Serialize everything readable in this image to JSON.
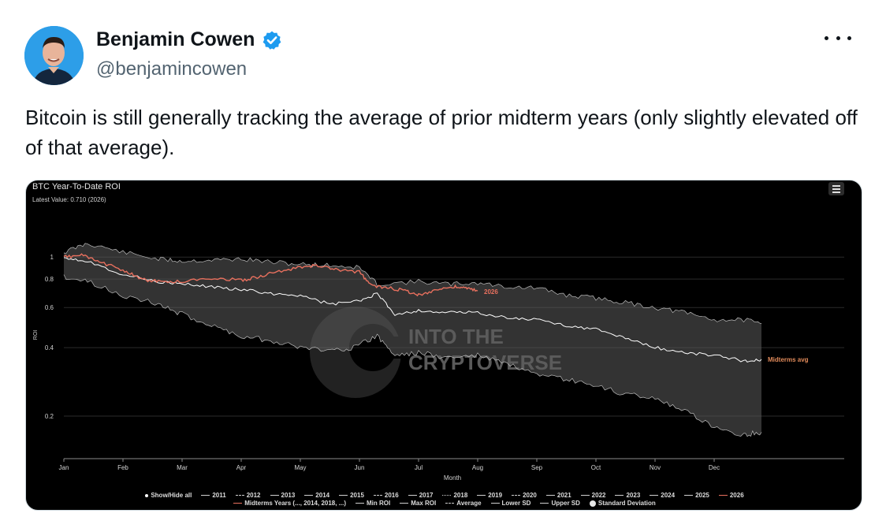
{
  "tweet": {
    "display_name": "Benjamin Cowen",
    "handle": "@benjamincowen",
    "text": "Bitcoin is still generally tracking the average of prior midterm years (only slightly elevated off of that average).",
    "icons": [
      "avatar",
      "verified-badge-icon",
      "more-options-icon"
    ],
    "colors": {
      "verified": "#1d9bf0",
      "name": "#0f1419",
      "handle": "#536471"
    }
  },
  "chart_data": {
    "type": "line",
    "title": "BTC Year-To-Date ROI",
    "subtitle": "Latest Value: 0.710 (2026)",
    "xlabel": "Month",
    "ylabel": "ROI",
    "y_scale": "log",
    "ylim": [
      0.13,
      1.4
    ],
    "y_ticks": [
      1,
      0.8,
      0.6,
      0.4,
      0.2
    ],
    "y_tick_labels": [
      "1",
      "0.8",
      "0.6",
      "0.4",
      "0.2"
    ],
    "x_ticks": [
      "Jan",
      "Feb",
      "Mar",
      "Apr",
      "May",
      "Jun",
      "Jul",
      "Aug",
      "Sep",
      "Oct",
      "Nov",
      "Dec"
    ],
    "watermark": [
      "INTO THE",
      "CRYPTOVERSE"
    ],
    "series_labels": {
      "midterms_avg": "Midterms avg",
      "current": "2026"
    },
    "series": [
      {
        "name": "Max ROI",
        "color": "#bdbdbd",
        "x": [
          0,
          0.4,
          1,
          1.6,
          2,
          2.5,
          3,
          3.5,
          4,
          4.5,
          5,
          5.3,
          6,
          6.5,
          7,
          7.5,
          8,
          8.5,
          9,
          9.5,
          10,
          10.5,
          11,
          11.5,
          11.8
        ],
        "values": [
          1.05,
          1.15,
          1.05,
          0.98,
          0.96,
          0.97,
          0.98,
          0.95,
          0.93,
          0.92,
          0.9,
          0.76,
          0.78,
          0.76,
          0.77,
          0.74,
          0.73,
          0.68,
          0.66,
          0.63,
          0.6,
          0.57,
          0.53,
          0.53,
          0.51
        ]
      },
      {
        "name": "Min ROI",
        "color": "#bdbdbd",
        "x": [
          0,
          0.4,
          1,
          1.6,
          2,
          2.5,
          3,
          3.5,
          4,
          4.5,
          4.9,
          5.3,
          5.6,
          6,
          6.5,
          7,
          7.5,
          8,
          8.5,
          9,
          9.5,
          10,
          10.5,
          11,
          11.5,
          11.8
        ],
        "values": [
          0.82,
          0.78,
          0.68,
          0.62,
          0.56,
          0.5,
          0.45,
          0.43,
          0.4,
          0.39,
          0.4,
          0.45,
          0.37,
          0.38,
          0.36,
          0.37,
          0.34,
          0.3,
          0.29,
          0.27,
          0.25,
          0.24,
          0.21,
          0.18,
          0.165,
          0.17
        ]
      },
      {
        "name": "Midterms avg",
        "color": "#ffffff",
        "x": [
          0,
          0.4,
          1,
          1.6,
          2,
          2.5,
          3,
          3.5,
          4,
          4.5,
          5,
          5.3,
          5.6,
          6,
          6.5,
          7,
          7.5,
          8,
          8.5,
          9,
          9.5,
          10,
          10.5,
          11,
          11.5,
          11.8
        ],
        "values": [
          1.0,
          0.96,
          0.84,
          0.78,
          0.76,
          0.74,
          0.72,
          0.69,
          0.68,
          0.62,
          0.64,
          0.69,
          0.56,
          0.58,
          0.57,
          0.57,
          0.54,
          0.53,
          0.5,
          0.48,
          0.44,
          0.4,
          0.38,
          0.37,
          0.35,
          0.355
        ]
      },
      {
        "name": "2026",
        "color": "#e8705e",
        "x": [
          0,
          0.3,
          0.6,
          1,
          1.3,
          1.6,
          2,
          2.5,
          3,
          3.3,
          3.6,
          4,
          4.3,
          4.6,
          5,
          5.2,
          5.5,
          5.8,
          6,
          6.3,
          6.6,
          6.8,
          7
        ],
        "values": [
          1.0,
          1.02,
          0.95,
          0.88,
          0.8,
          0.78,
          0.78,
          0.81,
          0.79,
          0.82,
          0.86,
          0.9,
          0.92,
          0.88,
          0.86,
          0.75,
          0.73,
          0.71,
          0.68,
          0.72,
          0.74,
          0.73,
          0.71
        ]
      }
    ],
    "legend_placement": "bottom",
    "legend": {
      "row1": [
        {
          "label": "Show/Hide all",
          "style": "dot"
        },
        {
          "label": "2011",
          "style": "solid"
        },
        {
          "label": "2012",
          "style": "dash"
        },
        {
          "label": "2013",
          "style": "solid"
        },
        {
          "label": "2014",
          "style": "solid"
        },
        {
          "label": "2015",
          "style": "solid"
        },
        {
          "label": "2016",
          "style": "dash"
        },
        {
          "label": "2017",
          "style": "solid"
        },
        {
          "label": "2018",
          "style": "dot"
        },
        {
          "label": "2019",
          "style": "solid"
        },
        {
          "label": "2020",
          "style": "dash"
        },
        {
          "label": "2021",
          "style": "solid"
        },
        {
          "label": "2022",
          "style": "solid"
        },
        {
          "label": "2023",
          "style": "solid"
        },
        {
          "label": "2024",
          "style": "solid"
        },
        {
          "label": "2025",
          "style": "solid"
        },
        {
          "label": "2026",
          "style": "solid",
          "color": "#e8705e"
        }
      ],
      "row2": [
        {
          "label": "Midterms Years (..., 2014, 2018, ...)",
          "style": "solid",
          "color": "#e8705e"
        },
        {
          "label": "Min ROI",
          "style": "solid"
        },
        {
          "label": "Max ROI",
          "style": "solid"
        },
        {
          "label": "Average",
          "style": "dash"
        },
        {
          "label": "Lower SD",
          "style": "solid"
        },
        {
          "label": "Upper SD",
          "style": "solid"
        },
        {
          "label": "Standard Deviation",
          "style": "circle"
        }
      ]
    },
    "grid": true
  }
}
